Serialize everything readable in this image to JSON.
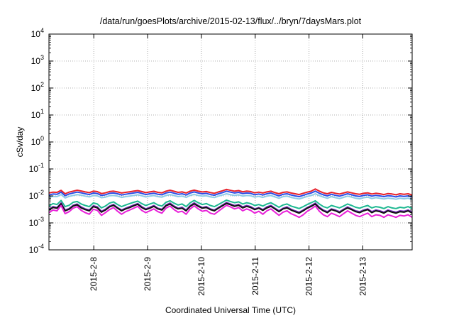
{
  "chart_data": {
    "type": "line",
    "title": "/data/run/goesPlots/archive/2015-02-13/flux/../bryn/7daysMars.plot",
    "xlabel": "Coordinated Universal Time (UTC)",
    "ylabel": "cSv/day",
    "yscale": "log",
    "ylim": [
      0.0001,
      10000
    ],
    "xlim": [
      "2015-02-07T04:00",
      "2015-02-13T22:00"
    ],
    "grid": true,
    "legend": "none",
    "y_ticks": [
      {
        "base": "10",
        "exp": "-4"
      },
      {
        "base": "10",
        "exp": "-3"
      },
      {
        "base": "10",
        "exp": "-2"
      },
      {
        "base": "10",
        "exp": "-1"
      },
      {
        "base": "10",
        "exp": "0"
      },
      {
        "base": "10",
        "exp": "1"
      },
      {
        "base": "10",
        "exp": "2"
      },
      {
        "base": "10",
        "exp": "3"
      },
      {
        "base": "10",
        "exp": "4"
      }
    ],
    "x_ticks": [
      {
        "label": "2015-2-8",
        "date": "2015-02-08T00:00"
      },
      {
        "label": "2015-2-9",
        "date": "2015-02-09T00:00"
      },
      {
        "label": "2015-2-10",
        "date": "2015-02-10T00:00"
      },
      {
        "label": "2015-2-11",
        "date": "2015-02-11T00:00"
      },
      {
        "label": "2015-2-12",
        "date": "2015-02-12T00:00"
      },
      {
        "label": "2015-2-13",
        "date": "2015-02-13T00:00"
      }
    ],
    "series": [
      {
        "color": "#e8202a",
        "profile": [
          0.0128,
          0.0138,
          0.0135,
          0.016,
          0.012,
          0.0138,
          0.015,
          0.0162,
          0.0152,
          0.014,
          0.0132,
          0.015,
          0.0144,
          0.0122,
          0.013,
          0.0145,
          0.015,
          0.014,
          0.0128,
          0.0135,
          0.0142,
          0.015,
          0.0158,
          0.0145,
          0.0132,
          0.014,
          0.0148,
          0.0135,
          0.013,
          0.015,
          0.0162,
          0.0148,
          0.0135,
          0.014,
          0.0128,
          0.015,
          0.0163,
          0.015,
          0.014,
          0.0145,
          0.0132,
          0.0125,
          0.014,
          0.0155,
          0.0175,
          0.016,
          0.015,
          0.0158,
          0.0142,
          0.015,
          0.0145,
          0.013,
          0.0138,
          0.0128,
          0.014,
          0.015,
          0.0132,
          0.012,
          0.0135,
          0.014,
          0.0128,
          0.012,
          0.0112,
          0.0125,
          0.0138,
          0.015,
          0.018,
          0.015,
          0.013,
          0.012,
          0.0135,
          0.0125,
          0.0118,
          0.0128,
          0.014,
          0.013,
          0.012,
          0.0115,
          0.0125,
          0.013,
          0.0118,
          0.0125,
          0.012,
          0.0112,
          0.0122,
          0.0118,
          0.011,
          0.012,
          0.0115,
          0.012,
          0.0108
        ]
      },
      {
        "color": "#2a4ee8",
        "profile": [
          0.0108,
          0.0118,
          0.0115,
          0.0138,
          0.0102,
          0.0118,
          0.0128,
          0.0138,
          0.013,
          0.012,
          0.0112,
          0.0128,
          0.0122,
          0.0104,
          0.011,
          0.0124,
          0.0128,
          0.012,
          0.0108,
          0.0115,
          0.0122,
          0.0128,
          0.0135,
          0.0124,
          0.0112,
          0.012,
          0.0126,
          0.0115,
          0.011,
          0.0128,
          0.0138,
          0.0126,
          0.0115,
          0.012,
          0.0108,
          0.0128,
          0.014,
          0.0128,
          0.012,
          0.0124,
          0.0112,
          0.0106,
          0.012,
          0.0132,
          0.015,
          0.0138,
          0.0128,
          0.0135,
          0.0122,
          0.0128,
          0.0124,
          0.011,
          0.0118,
          0.0108,
          0.012,
          0.0128,
          0.0112,
          0.01,
          0.0115,
          0.012,
          0.0108,
          0.01,
          0.0094,
          0.0105,
          0.0118,
          0.0128,
          0.015,
          0.0125,
          0.011,
          0.01,
          0.0115,
          0.0105,
          0.0098,
          0.0108,
          0.012,
          0.011,
          0.01,
          0.0096,
          0.0105,
          0.011,
          0.0098,
          0.0105,
          0.01,
          0.0094,
          0.0102,
          0.0098,
          0.0092,
          0.01,
          0.0096,
          0.01,
          0.009
        ]
      },
      {
        "color": "#8ecae6",
        "profile": [
          0.0088,
          0.0096,
          0.0094,
          0.0112,
          0.0084,
          0.0096,
          0.0104,
          0.0112,
          0.0106,
          0.0098,
          0.0092,
          0.0104,
          0.01,
          0.0086,
          0.009,
          0.0101,
          0.0104,
          0.0098,
          0.0088,
          0.0094,
          0.0099,
          0.0104,
          0.011,
          0.0101,
          0.0092,
          0.0098,
          0.0103,
          0.0094,
          0.009,
          0.0104,
          0.0112,
          0.0103,
          0.0094,
          0.0098,
          0.0088,
          0.0104,
          0.0114,
          0.0104,
          0.0098,
          0.0101,
          0.0092,
          0.0087,
          0.0098,
          0.0108,
          0.012,
          0.011,
          0.0104,
          0.011,
          0.0099,
          0.0104,
          0.0101,
          0.009,
          0.0096,
          0.0088,
          0.0098,
          0.0104,
          0.0092,
          0.0082,
          0.0094,
          0.0098,
          0.0088,
          0.0082,
          0.0077,
          0.0086,
          0.0096,
          0.0104,
          0.012,
          0.0102,
          0.009,
          0.0082,
          0.0094,
          0.0086,
          0.008,
          0.0088,
          0.0098,
          0.009,
          0.0082,
          0.0078,
          0.0086,
          0.009,
          0.008,
          0.0086,
          0.0082,
          0.0077,
          0.0083,
          0.008,
          0.0075,
          0.0082,
          0.0078,
          0.0082,
          0.0074
        ]
      },
      {
        "color": "#1fb892",
        "profile": [
          0.0042,
          0.0052,
          0.0048,
          0.0068,
          0.004,
          0.0045,
          0.0058,
          0.0062,
          0.005,
          0.0044,
          0.004,
          0.0055,
          0.005,
          0.0036,
          0.0042,
          0.0054,
          0.006,
          0.0048,
          0.004,
          0.0046,
          0.0052,
          0.0058,
          0.0064,
          0.0052,
          0.0044,
          0.005,
          0.0056,
          0.0046,
          0.0042,
          0.0058,
          0.0066,
          0.0054,
          0.0046,
          0.005,
          0.004,
          0.0056,
          0.0068,
          0.0056,
          0.0048,
          0.0052,
          0.0044,
          0.004,
          0.0048,
          0.0058,
          0.007,
          0.0062,
          0.0056,
          0.006,
          0.005,
          0.0056,
          0.0052,
          0.0044,
          0.0048,
          0.0042,
          0.005,
          0.0056,
          0.0046,
          0.0038,
          0.0046,
          0.005,
          0.0042,
          0.0038,
          0.0034,
          0.004,
          0.0048,
          0.0056,
          0.0066,
          0.005,
          0.004,
          0.0036,
          0.0044,
          0.004,
          0.0036,
          0.0042,
          0.005,
          0.0044,
          0.0038,
          0.0035,
          0.004,
          0.0044,
          0.0036,
          0.004,
          0.0038,
          0.0034,
          0.004,
          0.0036,
          0.0034,
          0.0038,
          0.0036,
          0.004,
          0.0034
        ]
      },
      {
        "color": "#7b2fbf",
        "profile": [
          0.0032,
          0.004,
          0.0037,
          0.0055,
          0.003,
          0.0034,
          0.0045,
          0.005,
          0.0039,
          0.0033,
          0.003,
          0.0043,
          0.0039,
          0.0027,
          0.0032,
          0.0042,
          0.0048,
          0.0037,
          0.003,
          0.0035,
          0.004,
          0.0046,
          0.0052,
          0.004,
          0.0033,
          0.0038,
          0.0044,
          0.0035,
          0.0032,
          0.0046,
          0.0054,
          0.0042,
          0.0035,
          0.0038,
          0.003,
          0.0044,
          0.0055,
          0.0044,
          0.0037,
          0.004,
          0.0033,
          0.003,
          0.0037,
          0.0046,
          0.0057,
          0.005,
          0.0044,
          0.0048,
          0.0039,
          0.0044,
          0.004,
          0.0033,
          0.0037,
          0.0031,
          0.0039,
          0.0044,
          0.0035,
          0.0028,
          0.0035,
          0.0039,
          0.0032,
          0.0028,
          0.0025,
          0.003,
          0.0037,
          0.0044,
          0.0054,
          0.0038,
          0.003,
          0.0026,
          0.0033,
          0.003,
          0.0026,
          0.0032,
          0.0039,
          0.0033,
          0.0028,
          0.0026,
          0.003,
          0.0033,
          0.0026,
          0.003,
          0.0028,
          0.0025,
          0.003,
          0.0027,
          0.0025,
          0.0028,
          0.0027,
          0.003,
          0.0025
        ]
      },
      {
        "color": "#111111",
        "profile": [
          0.003,
          0.0037,
          0.0035,
          0.0051,
          0.0028,
          0.0032,
          0.0042,
          0.0047,
          0.0036,
          0.0031,
          0.0028,
          0.004,
          0.0036,
          0.0025,
          0.003,
          0.0039,
          0.0045,
          0.0035,
          0.0028,
          0.0033,
          0.0037,
          0.0043,
          0.0049,
          0.0037,
          0.0031,
          0.0035,
          0.0041,
          0.0033,
          0.003,
          0.0043,
          0.005,
          0.0039,
          0.0033,
          0.0035,
          0.0028,
          0.0041,
          0.0051,
          0.0041,
          0.0035,
          0.0037,
          0.0031,
          0.0028,
          0.0035,
          0.0043,
          0.0053,
          0.0047,
          0.0041,
          0.0045,
          0.0036,
          0.0041,
          0.0037,
          0.0031,
          0.0035,
          0.0029,
          0.0036,
          0.0041,
          0.0033,
          0.0026,
          0.0033,
          0.0036,
          0.003,
          0.0026,
          0.0023,
          0.0028,
          0.0035,
          0.0041,
          0.005,
          0.0035,
          0.0028,
          0.0024,
          0.0031,
          0.0028,
          0.0024,
          0.003,
          0.0036,
          0.0031,
          0.0026,
          0.0024,
          0.0028,
          0.0031,
          0.0024,
          0.0028,
          0.0026,
          0.0023,
          0.0028,
          0.0025,
          0.0023,
          0.0026,
          0.0025,
          0.0028,
          0.0023
        ]
      },
      {
        "color": "#e81fd8",
        "profile": [
          0.0024,
          0.003,
          0.0028,
          0.0044,
          0.0022,
          0.0026,
          0.0035,
          0.004,
          0.0029,
          0.0024,
          0.0021,
          0.0032,
          0.0029,
          0.0019,
          0.0024,
          0.0031,
          0.0037,
          0.0027,
          0.0021,
          0.0026,
          0.003,
          0.0035,
          0.0041,
          0.0029,
          0.0024,
          0.0028,
          0.0033,
          0.0026,
          0.0023,
          0.0035,
          0.0042,
          0.0031,
          0.0025,
          0.0027,
          0.0021,
          0.0033,
          0.0043,
          0.0033,
          0.0027,
          0.0029,
          0.0023,
          0.0021,
          0.0027,
          0.0035,
          0.0045,
          0.0039,
          0.0033,
          0.0037,
          0.0028,
          0.0033,
          0.0029,
          0.0023,
          0.0027,
          0.0021,
          0.0028,
          0.0033,
          0.0025,
          0.0019,
          0.0025,
          0.0028,
          0.0022,
          0.0019,
          0.0016,
          0.002,
          0.0027,
          0.0033,
          0.0042,
          0.0027,
          0.002,
          0.0017,
          0.0023,
          0.002,
          0.0017,
          0.0022,
          0.0028,
          0.0023,
          0.0019,
          0.0017,
          0.002,
          0.0023,
          0.0017,
          0.002,
          0.0019,
          0.0016,
          0.002,
          0.0018,
          0.0016,
          0.0019,
          0.0018,
          0.002,
          0.0016
        ]
      }
    ]
  }
}
